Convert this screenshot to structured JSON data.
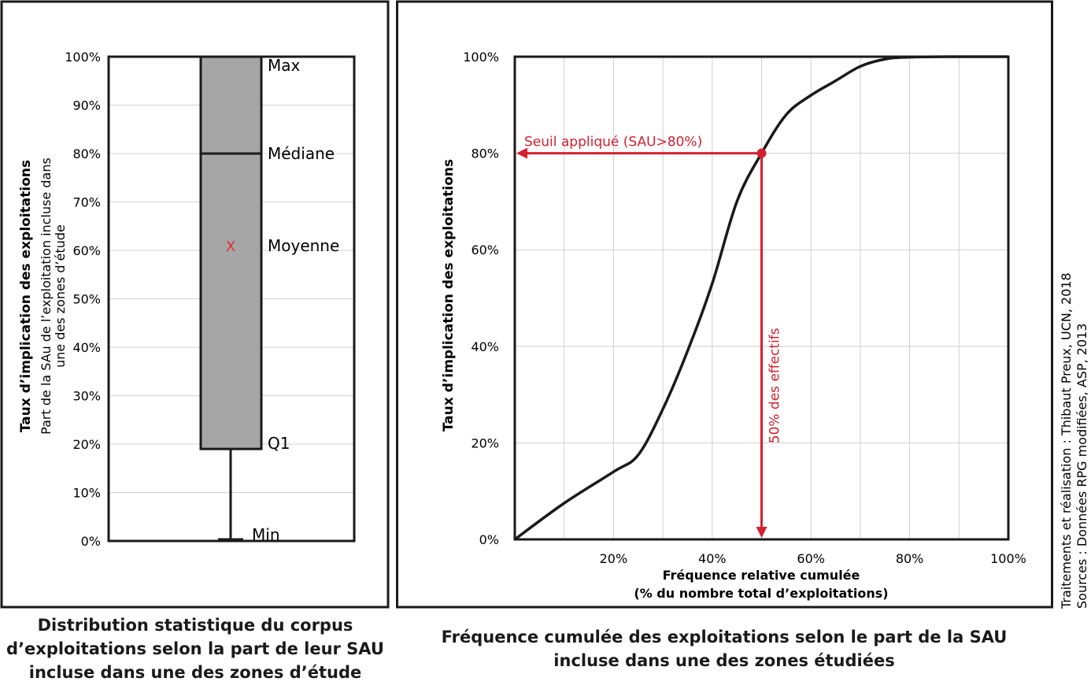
{
  "boxplot": {
    "caption": [
      "Distribution statistique du corpus",
      "d’exploitations selon la part de leur SAU",
      "incluse dans une des zones d’étude"
    ],
    "ylabel": "Taux d’implication des exploitations",
    "ylabel_sub": [
      "Part de la SAu de l’exploitation incluse dans",
      "une des zones d’étude"
    ],
    "y_ticks": [
      "0%",
      "10%",
      "20%",
      "30%",
      "40%",
      "50%",
      "60%",
      "70%",
      "80%",
      "90%",
      "100%"
    ],
    "labels": {
      "max": "Max",
      "median": "Médiane",
      "mean": "Moyenne",
      "q1": "Q1",
      "min": "Min",
      "mean_marker": "X"
    },
    "box_color": "#a6a6a6",
    "mean_color": "#e03030"
  },
  "cdf": {
    "caption": [
      "Fréquence cumulée des exploitations selon le part de la SAU",
      "incluse dans une des zones étudiées"
    ],
    "ylabel": "Taux d’implication des exploitations",
    "xlabel": [
      "Fréquence relative cumulée",
      "(% du nombre total d’exploitations)"
    ],
    "y_ticks": [
      "0%",
      "20%",
      "40%",
      "60%",
      "80%",
      "100%"
    ],
    "x_ticks": [
      "20%",
      "40%",
      "60%",
      "80%",
      "100%"
    ],
    "threshold_label": "Seuil appliqué (SAU>80%)",
    "effectifs_label": "50% des effectifs",
    "annotation_color": "#d42030"
  },
  "credits": [
    "Traitements et réalisation : Thibaut Preux, UCN, 2018",
    "Sources : Données RPG modifiées, ASP, 2013"
  ],
  "chart_data": [
    {
      "type": "box",
      "ylabel": "Taux d’implication des exploitations",
      "ylim": [
        0,
        100
      ],
      "min": 0,
      "q1": 19,
      "median": 80,
      "max": 100,
      "mean": 61,
      "grid": true
    },
    {
      "type": "line",
      "xlabel": "Fréquence relative cumulée (% du nombre total d’exploitations)",
      "ylabel": "Taux d’implication des exploitations",
      "xlim": [
        0,
        100
      ],
      "ylim": [
        0,
        100
      ],
      "x": [
        0,
        10,
        20,
        25,
        30,
        35,
        40,
        45,
        50,
        55,
        60,
        65,
        70,
        75,
        80,
        90,
        100
      ],
      "y": [
        0,
        7.5,
        14,
        17.5,
        27,
        39,
        53,
        70,
        80,
        88,
        92,
        95,
        98,
        99.5,
        99.9,
        100,
        100
      ],
      "threshold": {
        "x": 50,
        "y": 80
      },
      "grid": true
    }
  ]
}
